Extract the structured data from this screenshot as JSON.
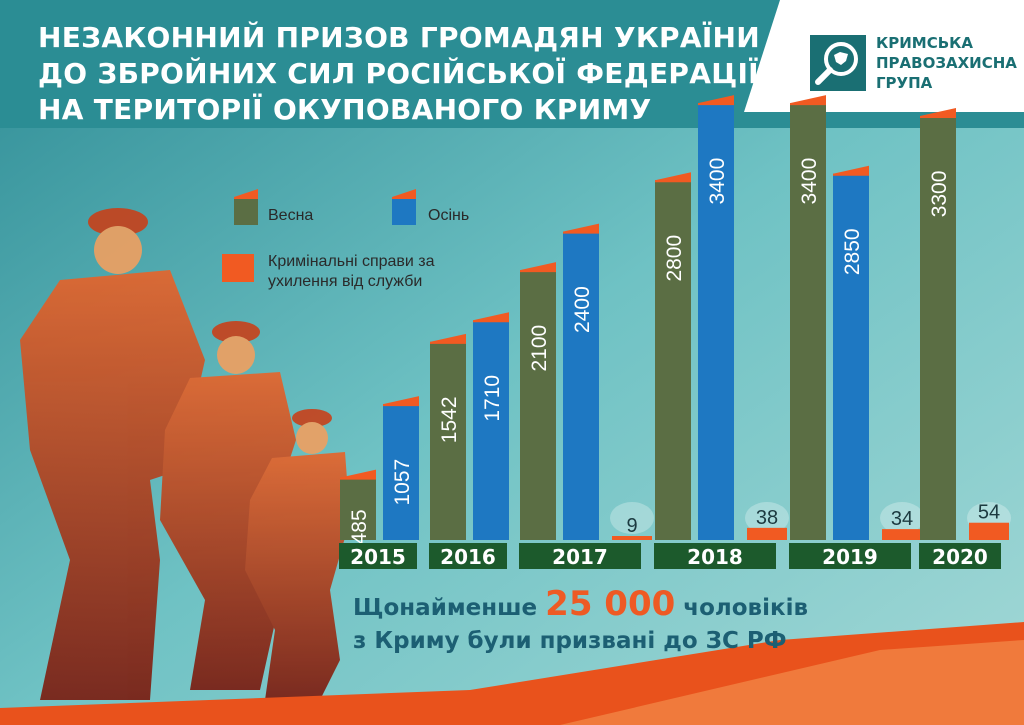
{
  "header": {
    "title_lines": [
      "НЕЗАКОННИЙ ПРИЗОВ ГРОМАДЯН УКРАЇНИ",
      "ДО ЗБРОЙНИХ СИЛ РОСІЙСЬКОЇ ФЕДЕРАЦІЇ",
      "НА ТЕРИТОРІЇ ОКУПОВАНОГО КРИМУ"
    ]
  },
  "org": {
    "name_lines": [
      "КРИМСЬКА",
      "ПРАВОЗАХИСНА",
      "ГРУПА"
    ],
    "icon": "magnifier-crimea-logo"
  },
  "legend": {
    "spring": "Весна",
    "autumn": "Осінь",
    "cases": [
      "Кримінальні справи за",
      "ухилення від служби"
    ]
  },
  "summary": {
    "prefix": "Щонайменше",
    "highlight": "25 000",
    "suffix": "чоловіків",
    "line2": "з Криму були призвані до ЗС РФ"
  },
  "colors": {
    "spring": "#5b6e44",
    "autumn": "#1e78c2",
    "cases": "#f15a22",
    "year_box": "#1c5a2c",
    "summary_text": "#1c5f73"
  },
  "chart_data": {
    "type": "bar",
    "categories": [
      "2015",
      "2016",
      "2017",
      "2018",
      "2019",
      "2020"
    ],
    "series": [
      {
        "name": "Весна",
        "values": [
          485,
          1542,
          2100,
          2800,
          3400,
          3300
        ]
      },
      {
        "name": "Осінь",
        "values": [
          1057,
          1710,
          2400,
          3400,
          2850,
          null
        ]
      },
      {
        "name": "Кримінальні справи за ухилення від служби",
        "values": [
          null,
          null,
          9,
          38,
          34,
          54
        ]
      }
    ],
    "value_labels": {
      "spring": [
        "485",
        "1542",
        "2100",
        "2800",
        "3400",
        "3300"
      ],
      "autumn": [
        "1057",
        "1710",
        "2400",
        "3400",
        "2850",
        ""
      ],
      "cases": [
        "",
        "",
        "9",
        "38",
        "34",
        "54"
      ]
    },
    "grid": false,
    "legend_position": "top-left"
  }
}
